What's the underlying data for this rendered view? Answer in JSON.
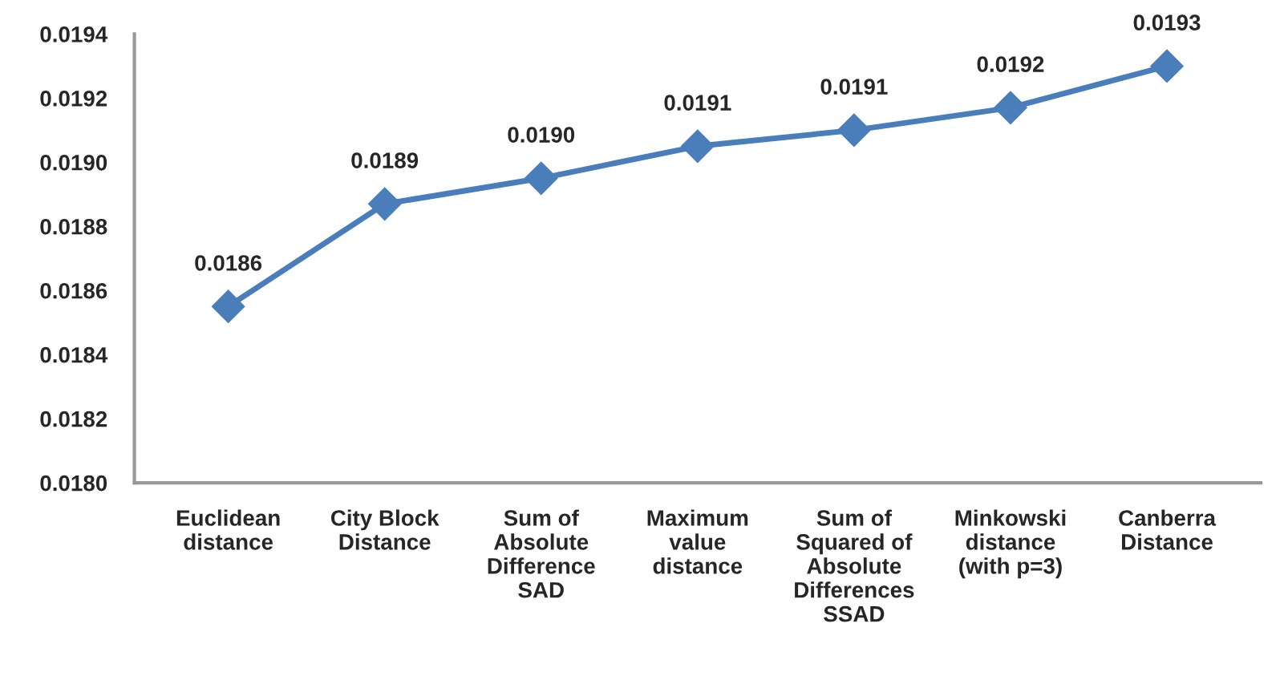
{
  "chart_data": {
    "type": "line",
    "categories": [
      "Euclidean\ndistance",
      "City Block\nDistance",
      "Sum of\nAbsolute\nDifference\nSAD",
      "Maximum\nvalue\ndistance",
      "Sum of\nSquared of\nAbsolute\nDifferences\nSSAD",
      "Minkowski\ndistance\n(with p=3)",
      "Canberra\nDistance"
    ],
    "series": [
      {
        "color": "#4a7ebb",
        "values": [
          0.01855,
          0.01887,
          0.01895,
          0.01905,
          0.0191,
          0.01917,
          0.0193
        ],
        "value_labels": [
          "0.0186",
          "0.0189",
          "0.0190",
          "0.0191",
          "0.0191",
          "0.0192",
          "0.0193"
        ]
      }
    ],
    "ylim": [
      0.018,
      0.0194
    ],
    "yticks": [
      {
        "value": 0.018,
        "label": "0.0180"
      },
      {
        "value": 0.0182,
        "label": "0.0182"
      },
      {
        "value": 0.0184,
        "label": "0.0184"
      },
      {
        "value": 0.0186,
        "label": "0.0186"
      },
      {
        "value": 0.0188,
        "label": "0.0188"
      },
      {
        "value": 0.019,
        "label": "0.0190"
      },
      {
        "value": 0.0192,
        "label": "0.0192"
      },
      {
        "value": 0.0194,
        "label": "0.0194"
      }
    ],
    "grid": false,
    "marker": "diamond",
    "line_style": "solid"
  }
}
